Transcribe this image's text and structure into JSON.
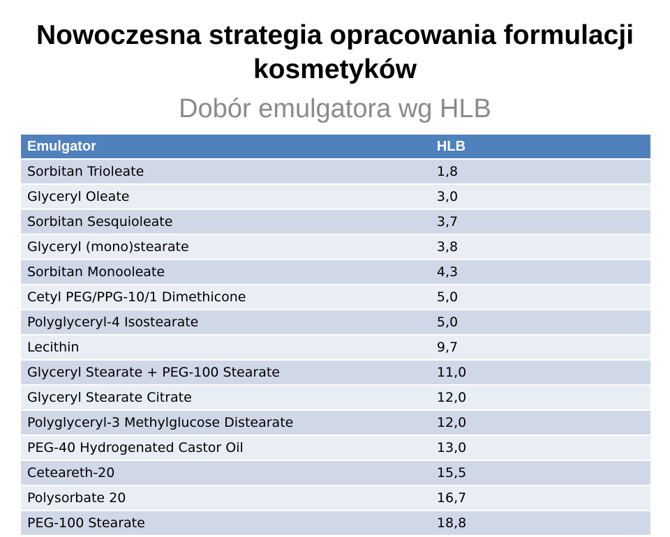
{
  "slide": {
    "title_line1": "Nowoczesna strategia opracowania formulacji",
    "title_line2": "kosmetyków",
    "subtitle": "Dobór emulgatora wg HLB"
  },
  "colors": {
    "header_bg": "#4f81bd",
    "row_odd_bg": "#d0d8e8",
    "row_even_bg": "#e9edf4",
    "subtitle_color": "#8a8a8a"
  },
  "table": {
    "headers": [
      "Emulgator",
      "HLB"
    ],
    "rows": [
      [
        "Sorbitan Trioleate",
        "1,8"
      ],
      [
        "Glyceryl Oleate",
        "3,0"
      ],
      [
        "Sorbitan Sesquioleate",
        "3,7"
      ],
      [
        "Glyceryl (mono)stearate",
        "3,8"
      ],
      [
        "Sorbitan Monooleate",
        "4,3"
      ],
      [
        "Cetyl PEG/PPG-10/1 Dimethicone",
        "5,0"
      ],
      [
        "Polyglyceryl-4 Isostearate",
        "5,0"
      ],
      [
        "Lecithin",
        "9,7"
      ],
      [
        "Glyceryl Stearate + PEG-100 Stearate",
        "11,0"
      ],
      [
        "Glyceryl Stearate Citrate",
        "12,0"
      ],
      [
        "Polyglyceryl-3 Methylglucose Distearate",
        "12,0"
      ],
      [
        "PEG-40 Hydrogenated Castor Oil",
        "13,0"
      ],
      [
        "Ceteareth-20",
        "15,5"
      ],
      [
        "Polysorbate 20",
        "16,7"
      ],
      [
        "PEG-100 Stearate",
        "18,8"
      ]
    ]
  }
}
